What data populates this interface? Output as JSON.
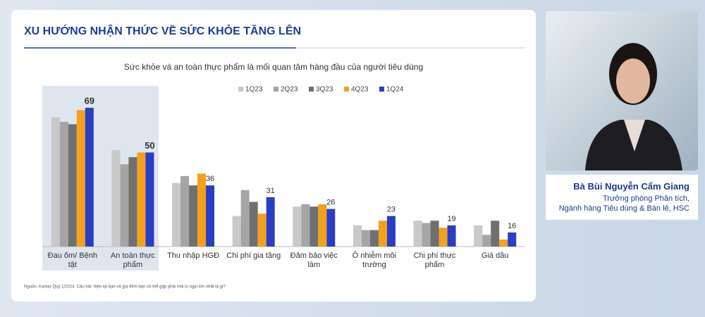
{
  "slide": {
    "title": "XU HƯỚNG NHẬN THỨC VỀ SỨC KHỎE TĂNG LÊN",
    "source": "Nguồn: Kantar Quý 1/2024. Câu hỏi: hiện tại bạn và gia đình bạn có thể gặp phải mối lo ngại lớn nhất là gì?"
  },
  "chart_data": {
    "type": "bar",
    "subtitle": "Sức khỏe và an toàn thực phẩm là mối quan tâm hàng đầu của người tiêu dùng",
    "categories": [
      "Đau ốm/ Bệnh tật",
      "An toàn thực phẩm",
      "Thu nhập HGĐ",
      "Chi phí gia tăng",
      "Đảm bảo việc làm",
      "Ô nhiễm môi trường",
      "Chi phí thực phẩm",
      "Giá dầu"
    ],
    "ylim": [
      10,
      75
    ],
    "series": [
      {
        "name": "1Q23",
        "color": "#c9c9c9",
        "values": [
          65,
          51,
          37,
          23,
          27,
          19,
          21,
          19
        ]
      },
      {
        "name": "2Q23",
        "color": "#a5a5a5",
        "values": [
          63,
          45,
          40,
          34,
          28,
          17,
          20,
          15
        ]
      },
      {
        "name": "3Q23",
        "color": "#707070",
        "values": [
          62,
          48,
          36,
          29,
          27,
          17,
          21,
          21
        ]
      },
      {
        "name": "4Q23",
        "color": "#f2a11f",
        "values": [
          68,
          50,
          41,
          24,
          28,
          21,
          18,
          13
        ]
      },
      {
        "name": "1Q24",
        "color": "#2a3ec2",
        "values": [
          69,
          50,
          36,
          31,
          26,
          23,
          19,
          16
        ],
        "labels": true
      }
    ]
  },
  "speaker": {
    "name": "Bà Bùi Nguyễn Cẩm Giang",
    "role_lines": [
      "Trưởng phòng Phân tích,",
      "Ngành hàng Tiêu dùng & Bán lẻ, HSC"
    ]
  }
}
